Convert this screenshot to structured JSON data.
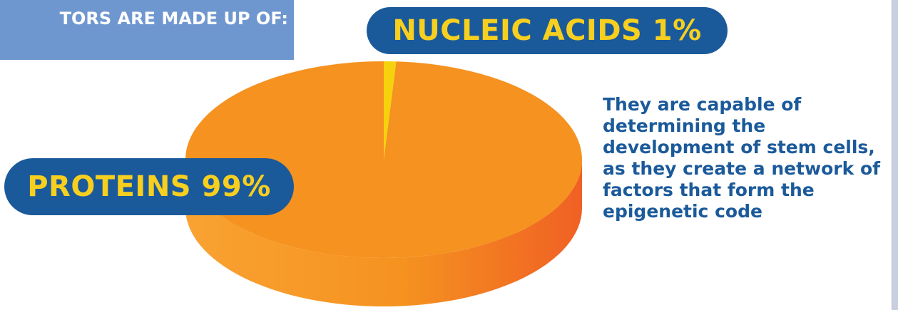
{
  "header": {
    "title": "TORS ARE MADE UP OF:"
  },
  "chart_data": {
    "type": "pie",
    "slices": [
      {
        "label": "NUCLEIC ACIDS",
        "value": 1,
        "display": "NUCLEIC ACIDS 1%"
      },
      {
        "label": "PROTEINS",
        "value": 99,
        "display": "PROTEINS 99%"
      }
    ],
    "unit": "%",
    "colors": {
      "nucleic_acids": "#f5d20c",
      "proteins": "#f59220",
      "proteins_side_dark": "#f06024",
      "label_pill": "#1b5a9a",
      "label_text": "#f7cf1f"
    }
  },
  "description": "They are capable of determining the development of stem cells, as they create a network of factors that form the epigenetic code"
}
